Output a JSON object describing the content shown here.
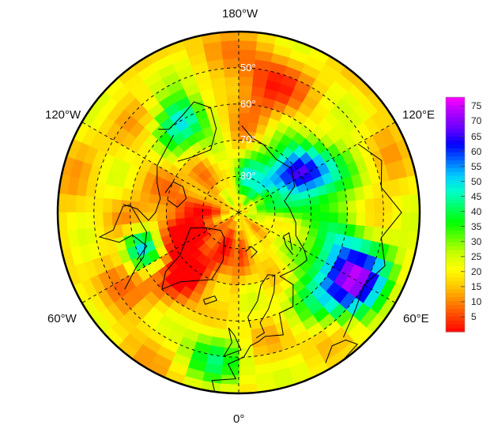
{
  "map": {
    "projection": "north-polar-stereographic",
    "center_latitude": 90,
    "outer_latitude": 40,
    "longitude_labels": [
      {
        "lon": 180,
        "text": "180°W"
      },
      {
        "lon": 0,
        "text": "0°"
      },
      {
        "lon": -120,
        "text": "120°W"
      },
      {
        "lon": 120,
        "text": "120°E"
      },
      {
        "lon": -60,
        "text": "60°W"
      },
      {
        "lon": 60,
        "text": "60°E"
      }
    ],
    "latitude_circles": [
      50,
      60,
      70,
      80
    ],
    "latitude_labels": [
      {
        "lat": 50,
        "text": "50°"
      },
      {
        "lat": 60,
        "text": "60°"
      },
      {
        "lat": 70,
        "text": "70°"
      },
      {
        "lat": 80,
        "text": "80°"
      }
    ],
    "meridians": [
      0,
      60,
      120,
      180,
      240,
      300
    ]
  },
  "colorbar": {
    "min": 0,
    "max": 78,
    "ticks": [
      5,
      10,
      15,
      20,
      25,
      30,
      35,
      40,
      45,
      50,
      55,
      60,
      65,
      70,
      75
    ],
    "tick_labels": [
      "5",
      "10",
      "15",
      "20",
      "25",
      "30",
      "35",
      "40",
      "45",
      "50",
      "55",
      "60",
      "65",
      "70",
      "75"
    ],
    "colors": [
      "#ff0000",
      "#ff4400",
      "#ff8800",
      "#ffcc00",
      "#ffff00",
      "#ccff00",
      "#66ff00",
      "#00ff00",
      "#00ff66",
      "#00ffcc",
      "#00ccff",
      "#0066ff",
      "#0000ff",
      "#6600ff",
      "#aa00ff",
      "#ff00ff"
    ]
  }
}
